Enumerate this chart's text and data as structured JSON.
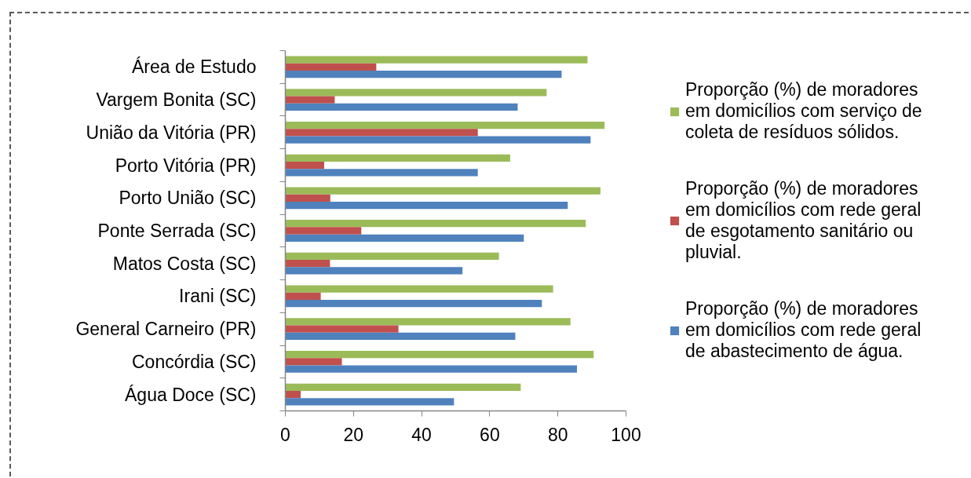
{
  "chart_data": {
    "type": "bar",
    "orientation": "horizontal",
    "categories": [
      "Área de Estudo",
      "Vargem Bonita (SC)",
      "União da Vitória (PR)",
      "Porto Vitória (PR)",
      "Porto União (SC)",
      "Ponte Serrada (SC)",
      "Matos Costa (SC)",
      "Irani (SC)",
      "General Carneiro (PR)",
      "Concórdia (SC)",
      "Água Doce (SC)"
    ],
    "series": [
      {
        "name": "Proporção (%) de moradores em domicílios com serviço de coleta de resíduos sólidos.",
        "color": "#9bbb59",
        "values": [
          88.7,
          76.7,
          93.7,
          66.0,
          92.5,
          88.2,
          62.7,
          78.6,
          83.7,
          90.5,
          69.1
        ]
      },
      {
        "name": "Proporção (%) de moradores em domicílios com rede geral de esgotamento sanitário ou pluvial.",
        "color": "#c0504d",
        "values": [
          26.7,
          14.5,
          56.5,
          11.4,
          13.2,
          22.3,
          13.1,
          10.4,
          33.2,
          16.6,
          4.5
        ]
      },
      {
        "name": "Proporção (%) de moradores em domicílios com rede geral de abastecimento de água.",
        "color": "#4f81bd",
        "values": [
          81.1,
          68.2,
          89.6,
          56.5,
          82.9,
          70.0,
          52.0,
          75.3,
          67.5,
          85.6,
          49.5
        ]
      }
    ],
    "xlim": [
      0,
      100
    ],
    "xticks": [
      0,
      20,
      40,
      60,
      80,
      100
    ],
    "grid": false,
    "legend": "right"
  }
}
